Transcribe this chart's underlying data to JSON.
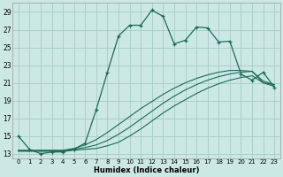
{
  "xlabel": "Humidex (Indice chaleur)",
  "xlim": [
    -0.5,
    23.5
  ],
  "ylim": [
    12.5,
    30
  ],
  "yticks": [
    13,
    15,
    17,
    19,
    21,
    23,
    25,
    27,
    29
  ],
  "xticks": [
    0,
    1,
    2,
    3,
    4,
    5,
    6,
    7,
    8,
    9,
    10,
    11,
    12,
    13,
    14,
    15,
    16,
    17,
    18,
    19,
    20,
    21,
    22,
    23
  ],
  "bg_color": "#cce8e4",
  "grid_color": "#aacfcb",
  "line_color": "#1a6b5a",
  "line1_x": [
    0,
    1,
    2,
    3,
    4,
    5,
    6,
    7,
    8,
    9,
    10,
    11,
    12,
    13,
    14,
    15,
    16,
    17,
    18,
    19,
    20,
    21,
    22,
    23
  ],
  "line1_y": [
    15,
    13.5,
    13,
    13.2,
    13.2,
    13.5,
    14.2,
    18,
    22.2,
    26.3,
    27.5,
    27.5,
    29.2,
    28.5,
    25.4,
    25.8,
    27.3,
    27.2,
    25.6,
    25.7,
    22.0,
    21.3,
    22.2,
    20.5
  ],
  "line2_x": [
    0,
    1,
    2,
    3,
    4,
    5,
    6,
    7,
    8,
    9,
    10,
    11,
    12,
    13,
    14,
    15,
    16,
    17,
    18,
    19,
    20,
    21,
    22,
    23
  ],
  "line2_y": [
    13.3,
    13.3,
    13.3,
    13.3,
    13.3,
    13.4,
    13.5,
    13.6,
    13.9,
    14.3,
    15.0,
    15.8,
    16.7,
    17.6,
    18.4,
    19.1,
    19.8,
    20.4,
    20.9,
    21.3,
    21.6,
    21.8,
    21.0,
    20.8
  ],
  "line3_x": [
    0,
    1,
    2,
    3,
    4,
    5,
    6,
    7,
    8,
    9,
    10,
    11,
    12,
    13,
    14,
    15,
    16,
    17,
    18,
    19,
    20,
    21,
    22,
    23
  ],
  "line3_y": [
    13.3,
    13.3,
    13.3,
    13.3,
    13.3,
    13.5,
    13.7,
    14.0,
    14.5,
    15.2,
    16.0,
    16.9,
    17.8,
    18.7,
    19.5,
    20.2,
    20.8,
    21.3,
    21.7,
    22.0,
    22.2,
    22.3,
    21.2,
    20.8
  ],
  "line4_x": [
    0,
    1,
    2,
    3,
    4,
    5,
    6,
    7,
    8,
    9,
    10,
    11,
    12,
    13,
    14,
    15,
    16,
    17,
    18,
    19,
    20,
    21,
    22,
    23
  ],
  "line4_y": [
    13.4,
    13.4,
    13.4,
    13.4,
    13.4,
    13.6,
    14.0,
    14.6,
    15.4,
    16.3,
    17.2,
    18.1,
    18.9,
    19.7,
    20.4,
    21.0,
    21.5,
    21.9,
    22.2,
    22.4,
    22.4,
    22.3,
    21.0,
    20.6
  ]
}
